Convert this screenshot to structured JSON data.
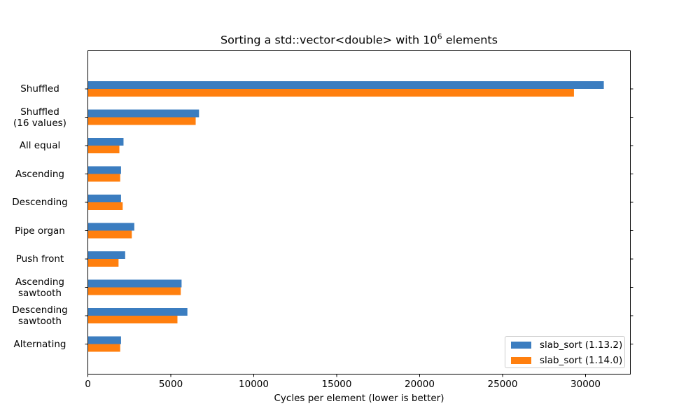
{
  "chart_data": {
    "type": "bar",
    "orientation": "horizontal",
    "title_main": "Sorting a std::vector<double> with 10",
    "title_sup": "6",
    "title_tail": " elements",
    "xlabel": "Cycles per element (lower is better)",
    "ylabel": "",
    "xlim": [
      0,
      32700
    ],
    "xticks": [
      "0",
      "5000",
      "10000",
      "15000",
      "20000",
      "25000",
      "30000"
    ],
    "xtick_values": [
      0,
      5000,
      10000,
      15000,
      20000,
      25000,
      30000
    ],
    "categories": [
      "Shuffled",
      "Shuffled\n(16 values)",
      "All equal",
      "Ascending",
      "Descending",
      "Pipe organ",
      "Push front",
      "Ascending\nsawtooth",
      "Descending\nsawtooth",
      "Alternating"
    ],
    "series": [
      {
        "name": "slab_sort (1.13.2)",
        "color": "#3b7dc0",
        "values": [
          31100,
          6700,
          2150,
          2000,
          2000,
          2800,
          2250,
          5650,
          6000,
          2000
        ]
      },
      {
        "name": "slab_sort (1.14.0)",
        "color": "#ff7f0e",
        "values": [
          29300,
          6500,
          1900,
          1950,
          2100,
          2650,
          1850,
          5600,
          5400,
          1950
        ]
      }
    ],
    "grid": false,
    "legend_position": "lower-right"
  }
}
